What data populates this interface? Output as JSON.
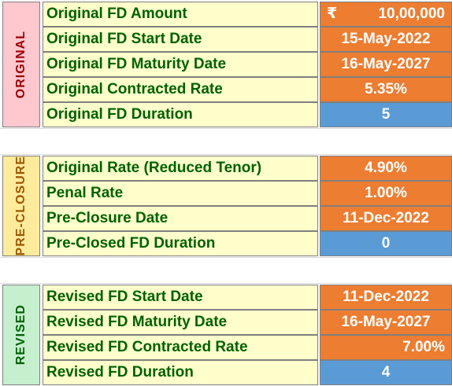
{
  "sections": {
    "original": {
      "label": "ORIGINAL",
      "bg": "#ffc7ce",
      "color": "#9c0006"
    },
    "preclosure": {
      "label": "PRE-CLOSURE",
      "bg": "#ffeb9c",
      "color": "#9c5700"
    },
    "revised": {
      "label": "REVISED",
      "bg": "#c6efce",
      "color": "#006100"
    }
  },
  "rows": {
    "r0": {
      "label": "Original FD Amount",
      "currency": "₹",
      "value": "10,00,000"
    },
    "r1": {
      "label": "Original FD Start Date",
      "value": "15-May-2022"
    },
    "r2": {
      "label": "Original FD Maturity Date",
      "value": "16-May-2027"
    },
    "r3": {
      "label": "Original Contracted Rate",
      "value": "5.35%"
    },
    "r4": {
      "label": "Original FD Duration",
      "value": "5"
    },
    "r5": {
      "label": "Original Rate (Reduced Tenor)",
      "value": "4.90%"
    },
    "r6": {
      "label": "Penal Rate",
      "value": "1.00%"
    },
    "r7": {
      "label": "Pre-Closure Date",
      "value": "11-Dec-2022"
    },
    "r8": {
      "label": "Pre-Closed FD Duration",
      "value": "0"
    },
    "r9": {
      "label": "Revised FD Start Date",
      "value": "11-Dec-2022"
    },
    "r10": {
      "label": "Revised FD Maturity Date",
      "value": "16-May-2027"
    },
    "r11": {
      "label": "Revised FD Contracted Rate",
      "value": "7.00%"
    },
    "r12": {
      "label": "Revised FD Duration",
      "value": "4"
    }
  },
  "colors": {
    "label_bg": "#ffffcc",
    "label_text": "#006100",
    "value_orange": "#ed7d31",
    "value_blue": "#5b9bd5"
  }
}
